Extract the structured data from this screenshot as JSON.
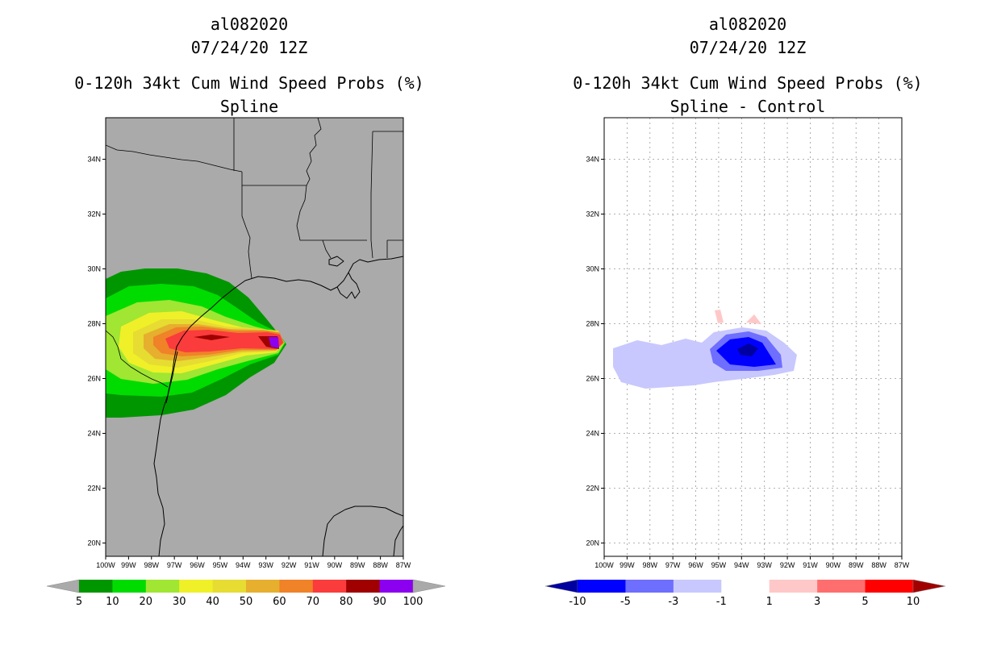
{
  "left_panel": {
    "storm_id": "al082020",
    "datetime": "07/24/20 12Z",
    "product": "0-120h 34kt Cum Wind Speed Probs (%)",
    "subtitle": "Spline"
  },
  "right_panel": {
    "storm_id": "al082020",
    "datetime": "07/24/20 12Z",
    "product": "0-120h 34kt Cum Wind Speed Probs (%)",
    "subtitle": "Spline - Control"
  },
  "lat_labels": [
    "34N",
    "32N",
    "30N",
    "28N",
    "26N",
    "24N",
    "22N",
    "20N"
  ],
  "lon_labels": [
    "100W",
    "99W",
    "98W",
    "97W",
    "96W",
    "95W",
    "94W",
    "93W",
    "92W",
    "91W",
    "90W",
    "89W",
    "88W",
    "87W"
  ],
  "left_colorbar": {
    "labels": [
      "5",
      "10",
      "20",
      "30",
      "40",
      "50",
      "60",
      "70",
      "80",
      "90",
      "100"
    ],
    "colors": [
      "#aaaaaa",
      "#009600",
      "#00dc00",
      "#a0e632",
      "#f0f028",
      "#e6dc32",
      "#e6af2d",
      "#f08228",
      "#fa3c3c",
      "#a00000",
      "#8c00f0",
      "#aaaaaa"
    ]
  },
  "right_colorbar": {
    "labels": [
      "-10",
      "-5",
      "-3",
      "-1",
      "1",
      "3",
      "5",
      "10"
    ],
    "colors": [
      "#0000a0",
      "#0000ff",
      "#6e6eff",
      "#c8c8ff",
      "#ffffff",
      "#ffc8c8",
      "#ff6e6e",
      "#ff0000",
      "#a00000"
    ]
  },
  "colors": {
    "map_background_left": "#aaaaaa",
    "map_background_right": "#ffffff"
  }
}
